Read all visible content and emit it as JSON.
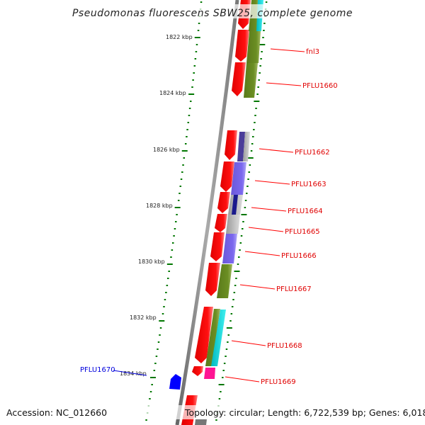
{
  "title": "Pseudomonas fluorescens SBW25, complete genome",
  "ticks": [
    "1822 kbp",
    "1824 kbp",
    "1826 kbp",
    "1828 kbp",
    "1830 kbp",
    "1832 kbp",
    "1834 kbp"
  ],
  "genes": {
    "fnl3": "fnl3",
    "pflu1660": "PFLU1660",
    "pflu1662": "PFLU1662",
    "pflu1663": "PFLU1663",
    "pflu1664": "PFLU1664",
    "pflu1665": "PFLU1665",
    "pflu1666": "PFLU1666",
    "pflu1667": "PFLU1667",
    "pflu1668": "PFLU1668",
    "pflu1669": "PFLU1669",
    "pflu1670": "PFLU1670"
  },
  "footer": {
    "accession": "Accession: NC_012660",
    "summary": "Topology: circular; Length: 6,722,539 bp; Genes: 6,018"
  },
  "colors": {
    "cds": "#ff0000",
    "olive": "#6b8e23",
    "purple": "#7b68ee",
    "cyan": "#00ced1",
    "magenta": "#ff1493",
    "blue": "#0000ff",
    "ticks": "#007700"
  }
}
